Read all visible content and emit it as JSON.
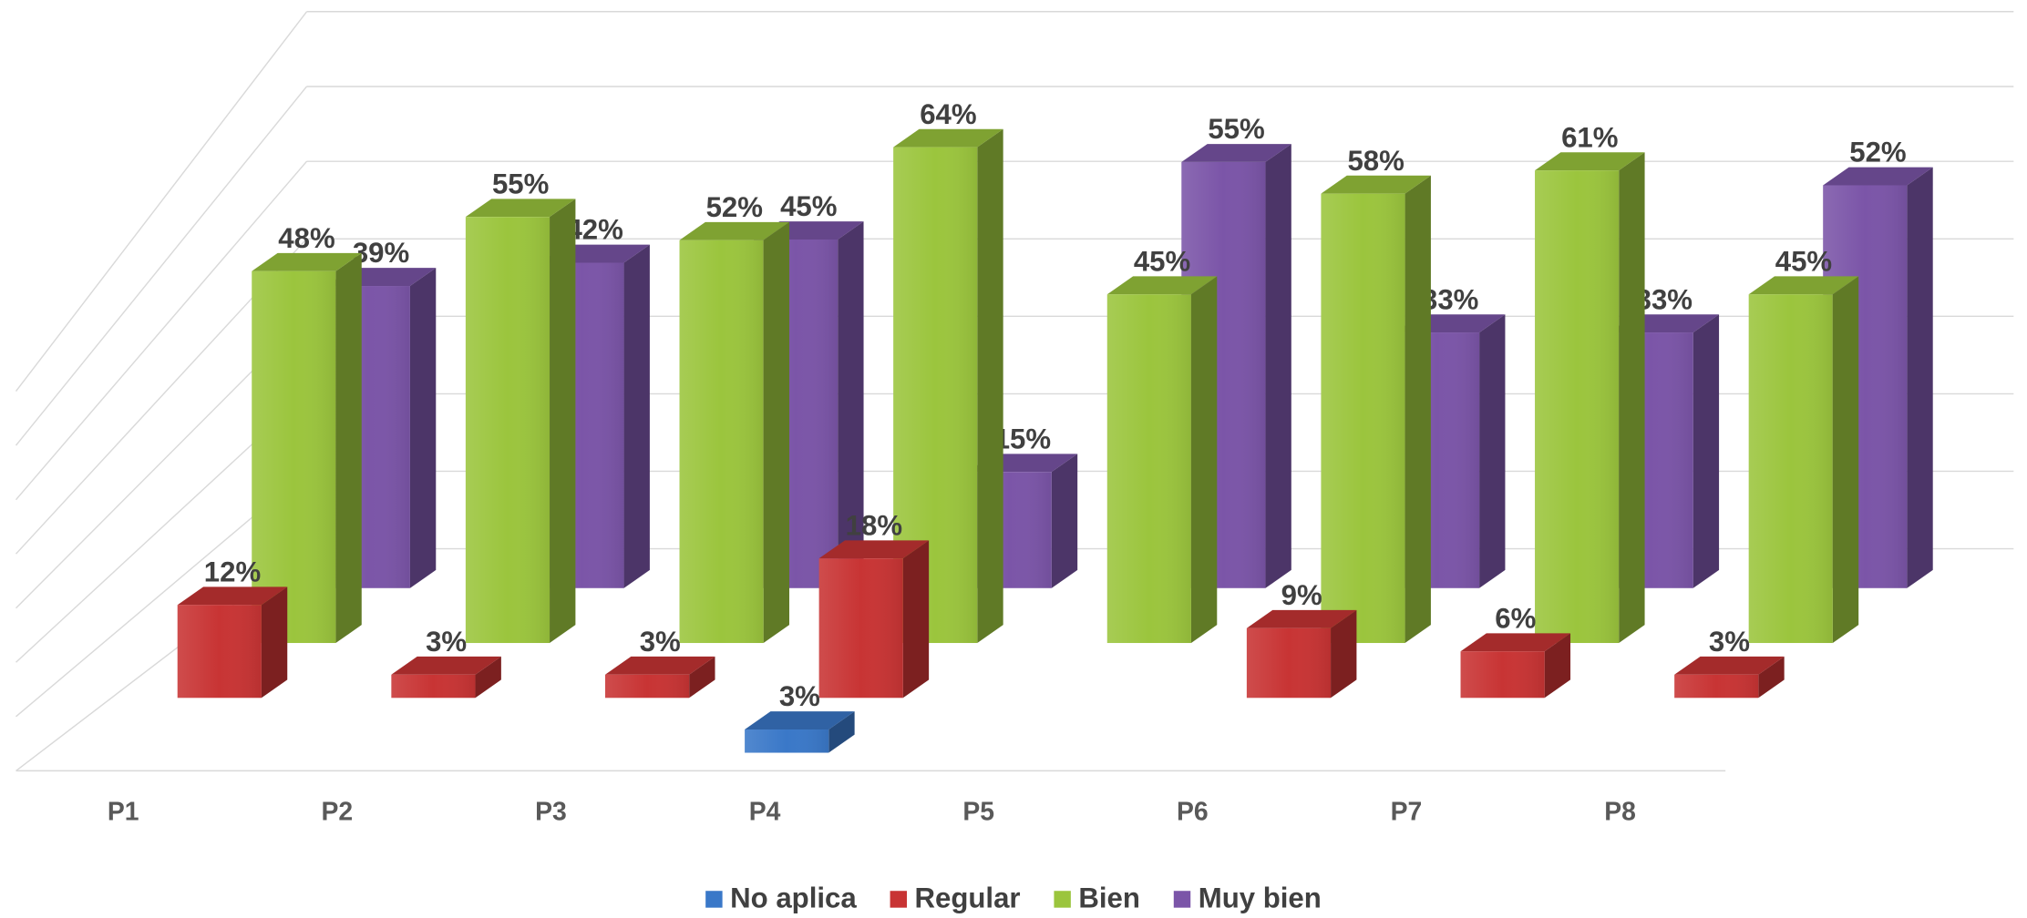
{
  "chart_data": {
    "type": "bar3d",
    "categories": [
      "P1",
      "P2",
      "P3",
      "P4",
      "P5",
      "P6",
      "P7",
      "P8"
    ],
    "series": [
      {
        "name": "No aplica",
        "color": "#3a78c8",
        "values": [
          null,
          null,
          null,
          3,
          null,
          null,
          null,
          null
        ],
        "value_labels": [
          null,
          null,
          null,
          "3%",
          null,
          null,
          null,
          null
        ]
      },
      {
        "name": "Regular",
        "color": "#c83434",
        "values": [
          12,
          3,
          3,
          18,
          null,
          9,
          6,
          3
        ],
        "value_labels": [
          "12%",
          "3%",
          "3%",
          "18%",
          null,
          "9%",
          "6%",
          "3%"
        ]
      },
      {
        "name": "Bien",
        "color": "#9bc53d",
        "values": [
          48,
          55,
          52,
          64,
          45,
          58,
          61,
          45
        ],
        "value_labels": [
          "48%",
          "55%",
          "52%",
          "64%",
          "45%",
          "58%",
          "61%",
          "45%"
        ]
      },
      {
        "name": "Muy bien",
        "color": "#7b55a8",
        "values": [
          39,
          42,
          45,
          15,
          55,
          33,
          33,
          52
        ],
        "value_labels": [
          "39%",
          "42%",
          "45%",
          "15%",
          "55%",
          "33%",
          "33%",
          "52%"
        ]
      }
    ],
    "ylim": [
      0,
      70
    ],
    "legend": "bottom"
  }
}
